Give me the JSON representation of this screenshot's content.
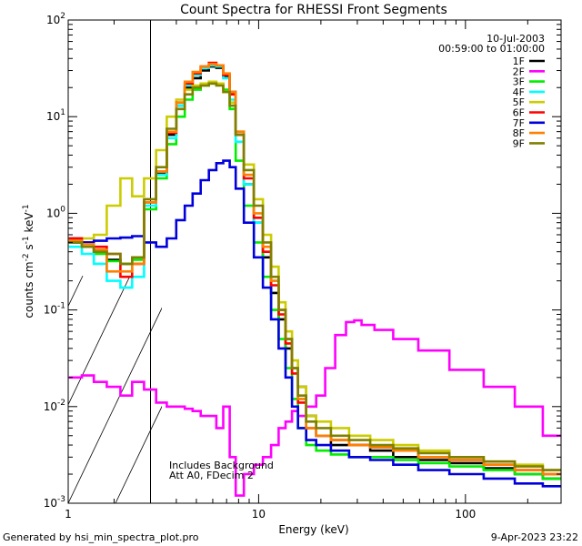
{
  "chart_data": {
    "type": "line",
    "title": "Count Spectra for RHESSI Front Segments",
    "xlabel": "Energy (keV)",
    "ylabel": "counts cm^-2 s^-1 keV^-1",
    "xscale": "log",
    "yscale": "log",
    "xlim": [
      1.2,
      290
    ],
    "ylim": [
      0.001,
      100
    ],
    "x_ticks": [
      {
        "value": 1,
        "label": "1"
      },
      {
        "value": 10,
        "label": "10"
      },
      {
        "value": 100,
        "label": "100"
      }
    ],
    "y_ticks": [
      {
        "value": 0.001,
        "mant": "10",
        "exp": "-3"
      },
      {
        "value": 0.01,
        "mant": "10",
        "exp": "-2"
      },
      {
        "value": 0.1,
        "mant": "10",
        "exp": "-1"
      },
      {
        "value": 1,
        "mant": "10",
        "exp": "0"
      },
      {
        "value": 10,
        "mant": "10",
        "exp": "1"
      },
      {
        "value": 100,
        "mant": "10",
        "exp": "2"
      }
    ],
    "date": "10-Jul-2003",
    "time_range": "00:59:00 to 01:00:00",
    "attenuator_threshold_keV": 3,
    "annotations": [
      "Includes Background",
      "Att A0, FDecim 2"
    ],
    "series": [
      {
        "name": "1F",
        "color": "#000000",
        "energies": [
          1.3,
          1.5,
          1.7,
          2.0,
          2.3,
          2.6,
          3.0,
          3.4,
          3.8,
          4.2,
          4.6,
          5.0,
          5.5,
          6.0,
          6.5,
          7.0,
          7.5,
          8.0,
          9.0,
          10.0,
          11.0,
          12.0,
          13.0,
          14.0,
          15.0,
          16.0,
          18.0,
          20.0,
          25.0,
          30.0,
          40.0,
          50.0,
          70.0,
          100.0,
          150.0,
          200.0,
          280.0
        ],
        "values": [
          0.55,
          0.5,
          0.4,
          0.33,
          0.3,
          0.35,
          1.3,
          2.6,
          6.5,
          13,
          20,
          25,
          30,
          33,
          32,
          26,
          18,
          6.5,
          2.0,
          0.8,
          0.35,
          0.15,
          0.08,
          0.04,
          0.025,
          0.016,
          0.008,
          0.005,
          0.004,
          0.004,
          0.0035,
          0.003,
          0.0028,
          0.0026,
          0.0023,
          0.002,
          0.0018
        ]
      },
      {
        "name": "2F",
        "color": "#ff00ff",
        "energies": [
          1.3,
          1.5,
          1.7,
          2.0,
          2.3,
          2.6,
          3.0,
          3.4,
          3.8,
          4.2,
          4.6,
          5.0,
          5.5,
          6.0,
          6.5,
          7.0,
          7.5,
          8.0,
          9.0,
          10.0,
          11.0,
          12.0,
          13.0,
          14.0,
          15.0,
          16.0,
          18.0,
          20.0,
          22.0,
          25.0,
          28.0,
          30.0,
          33.0,
          40.0,
          50.0,
          70.0,
          100.0,
          150.0,
          200.0,
          280.0
        ],
        "values": [
          0.02,
          0.021,
          0.018,
          0.016,
          0.013,
          0.018,
          0.015,
          0.011,
          0.01,
          0.01,
          0.0095,
          0.009,
          0.008,
          0.008,
          0.006,
          0.01,
          0.003,
          0.0012,
          0.002,
          0.0025,
          0.003,
          0.004,
          0.006,
          0.007,
          0.009,
          0.008,
          0.01,
          0.013,
          0.025,
          0.055,
          0.075,
          0.078,
          0.07,
          0.062,
          0.05,
          0.038,
          0.024,
          0.016,
          0.01,
          0.005
        ]
      },
      {
        "name": "3F",
        "color": "#00ee00",
        "energies": [
          1.3,
          1.5,
          1.7,
          2.0,
          2.3,
          2.6,
          3.0,
          3.4,
          3.8,
          4.2,
          4.6,
          5.0,
          5.5,
          6.0,
          6.5,
          7.0,
          7.5,
          8.0,
          9.0,
          10.0,
          11.0,
          12.0,
          13.0,
          14.0,
          15.0,
          16.0,
          18.0,
          20.0,
          25.0,
          30.0,
          40.0,
          50.0,
          70.0,
          100.0,
          150.0,
          200.0,
          280.0
        ],
        "values": [
          0.5,
          0.45,
          0.38,
          0.32,
          0.3,
          0.33,
          1.1,
          2.3,
          5.2,
          10,
          15,
          19,
          21,
          22,
          22,
          19,
          12,
          3.5,
          1.2,
          0.5,
          0.22,
          0.1,
          0.05,
          0.025,
          0.012,
          0.006,
          0.004,
          0.0035,
          0.0032,
          0.003,
          0.003,
          0.0028,
          0.0026,
          0.0024,
          0.0022,
          0.002,
          0.0018
        ]
      },
      {
        "name": "4F",
        "color": "#00ffff",
        "energies": [
          1.3,
          1.5,
          1.7,
          2.0,
          2.3,
          2.6,
          3.0,
          3.4,
          3.8,
          4.2,
          4.6,
          5.0,
          5.5,
          6.0,
          6.5,
          7.0,
          7.5,
          8.0,
          9.0,
          10.0,
          11.0,
          12.0,
          13.0,
          14.0,
          15.0,
          16.0,
          18.0,
          20.0,
          25.0,
          30.0,
          40.0,
          50.0,
          70.0,
          100.0,
          150.0,
          200.0,
          280.0
        ],
        "values": [
          0.45,
          0.38,
          0.3,
          0.2,
          0.17,
          0.22,
          1.2,
          2.5,
          6.0,
          13,
          21,
          27,
          32,
          34,
          33,
          25,
          15,
          5.5,
          2.0,
          0.8,
          0.4,
          0.2,
          0.1,
          0.05,
          0.025,
          0.012,
          0.006,
          0.005,
          0.0045,
          0.004,
          0.0038,
          0.0035,
          0.003,
          0.0028,
          0.0025,
          0.0022,
          0.002
        ]
      },
      {
        "name": "5F",
        "color": "#cccc00",
        "energies": [
          1.3,
          1.5,
          1.7,
          2.0,
          2.3,
          2.6,
          3.0,
          3.4,
          3.8,
          4.2,
          4.6,
          5.0,
          5.5,
          6.0,
          6.5,
          7.0,
          7.5,
          8.0,
          9.0,
          10.0,
          11.0,
          12.0,
          13.0,
          14.0,
          15.0,
          16.0,
          18.0,
          20.0,
          25.0,
          30.0,
          40.0,
          50.0,
          70.0,
          100.0,
          150.0,
          200.0,
          280.0
        ],
        "values": [
          0.5,
          0.55,
          0.6,
          1.2,
          2.3,
          1.5,
          2.3,
          4.5,
          10,
          15,
          19,
          21,
          22,
          23,
          22,
          18,
          14,
          7.0,
          3.2,
          1.4,
          0.6,
          0.28,
          0.12,
          0.06,
          0.03,
          0.016,
          0.008,
          0.007,
          0.006,
          0.005,
          0.0045,
          0.004,
          0.0035,
          0.003,
          0.0027,
          0.0025,
          0.0022
        ]
      },
      {
        "name": "6F",
        "color": "#ff0000",
        "energies": [
          1.3,
          1.5,
          1.7,
          2.0,
          2.3,
          2.6,
          3.0,
          3.4,
          3.8,
          4.2,
          4.6,
          5.0,
          5.5,
          6.0,
          6.5,
          7.0,
          7.5,
          8.0,
          9.0,
          10.0,
          11.0,
          12.0,
          13.0,
          14.0,
          15.0,
          16.0,
          18.0,
          20.0,
          25.0,
          30.0,
          40.0,
          50.0,
          70.0,
          100.0,
          150.0,
          200.0,
          280.0
        ],
        "values": [
          0.55,
          0.5,
          0.45,
          0.38,
          0.22,
          0.3,
          1.3,
          2.7,
          6.8,
          14,
          22,
          28,
          33,
          36,
          34,
          27,
          17,
          6.5,
          2.3,
          0.9,
          0.4,
          0.18,
          0.09,
          0.045,
          0.022,
          0.011,
          0.006,
          0.005,
          0.0045,
          0.004,
          0.0038,
          0.0035,
          0.003,
          0.0028,
          0.0025,
          0.0022,
          0.002
        ]
      },
      {
        "name": "7F",
        "color": "#0000dd",
        "energies": [
          1.3,
          1.5,
          1.7,
          2.0,
          2.3,
          2.6,
          3.0,
          3.4,
          3.8,
          4.2,
          4.6,
          5.0,
          5.5,
          6.0,
          6.5,
          7.0,
          7.5,
          8.0,
          9.0,
          10.0,
          11.0,
          12.0,
          13.0,
          14.0,
          15.0,
          16.0,
          18.0,
          20.0,
          25.0,
          30.0,
          40.0,
          50.0,
          70.0,
          100.0,
          150.0,
          200.0,
          280.0
        ],
        "values": [
          0.5,
          0.5,
          0.52,
          0.55,
          0.56,
          0.58,
          0.5,
          0.45,
          0.55,
          0.85,
          1.2,
          1.6,
          2.2,
          2.8,
          3.3,
          3.5,
          3.0,
          1.8,
          0.8,
          0.35,
          0.17,
          0.08,
          0.04,
          0.02,
          0.01,
          0.006,
          0.0045,
          0.004,
          0.0035,
          0.003,
          0.0028,
          0.0025,
          0.0022,
          0.002,
          0.0018,
          0.0016,
          0.0015
        ]
      },
      {
        "name": "8F",
        "color": "#ff8000",
        "energies": [
          1.3,
          1.5,
          1.7,
          2.0,
          2.3,
          2.6,
          3.0,
          3.4,
          3.8,
          4.2,
          4.6,
          5.0,
          5.5,
          6.0,
          6.5,
          7.0,
          7.5,
          8.0,
          9.0,
          10.0,
          11.0,
          12.0,
          13.0,
          14.0,
          15.0,
          16.0,
          18.0,
          20.0,
          25.0,
          30.0,
          40.0,
          50.0,
          70.0,
          100.0,
          150.0,
          200.0,
          280.0
        ],
        "values": [
          0.52,
          0.48,
          0.42,
          0.25,
          0.25,
          0.3,
          1.3,
          2.7,
          7.0,
          14,
          23,
          29,
          33,
          35,
          34,
          28,
          18,
          7.0,
          2.5,
          1.0,
          0.45,
          0.2,
          0.1,
          0.05,
          0.025,
          0.012,
          0.006,
          0.005,
          0.0045,
          0.004,
          0.0038,
          0.0035,
          0.003,
          0.0028,
          0.0025,
          0.0022,
          0.002
        ]
      },
      {
        "name": "9F",
        "color": "#808000",
        "energies": [
          1.3,
          1.5,
          1.7,
          2.0,
          2.3,
          2.6,
          3.0,
          3.4,
          3.8,
          4.2,
          4.6,
          5.0,
          5.5,
          6.0,
          6.5,
          7.0,
          7.5,
          8.0,
          9.0,
          10.0,
          11.0,
          12.0,
          13.0,
          14.0,
          15.0,
          16.0,
          18.0,
          20.0,
          25.0,
          30.0,
          40.0,
          50.0,
          70.0,
          100.0,
          150.0,
          200.0,
          280.0
        ],
        "values": [
          0.5,
          0.45,
          0.4,
          0.38,
          0.3,
          0.35,
          1.4,
          3.0,
          7.5,
          12,
          17,
          20,
          21,
          22,
          21,
          18,
          13,
          6.5,
          2.8,
          1.2,
          0.5,
          0.22,
          0.1,
          0.05,
          0.025,
          0.013,
          0.007,
          0.006,
          0.005,
          0.0045,
          0.004,
          0.0037,
          0.0033,
          0.003,
          0.0027,
          0.0024,
          0.0022
        ]
      }
    ]
  },
  "footer": {
    "generated_by": "Generated by hsi_min_spectra_plot.pro",
    "timestamp": "9-Apr-2023 23:22"
  }
}
